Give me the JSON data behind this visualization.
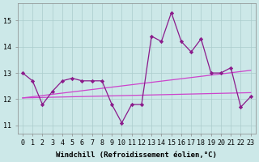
{
  "x": [
    0,
    1,
    2,
    3,
    4,
    5,
    6,
    7,
    8,
    9,
    10,
    11,
    12,
    13,
    14,
    15,
    16,
    17,
    18,
    19,
    20,
    21,
    22,
    23
  ],
  "line1": [
    13.0,
    12.7,
    11.8,
    12.3,
    12.7,
    12.8,
    12.7,
    12.7,
    12.7,
    11.8,
    11.1,
    11.8,
    11.8,
    14.4,
    14.2,
    15.3,
    14.2,
    13.8,
    14.3,
    13.0,
    13.0,
    13.2,
    11.7,
    12.1
  ],
  "line_color": "#8b1a8b",
  "reg_color": "#cc44cc",
  "bg_color": "#cce8e8",
  "grid_color": "#aacccc",
  "xlabel": "Windchill (Refroidissement éolien,°C)",
  "ylabel_ticks": [
    11,
    12,
    13,
    14,
    15
  ],
  "xlim": [
    -0.5,
    23.5
  ],
  "ylim": [
    10.7,
    15.65
  ],
  "tick_fontsize": 6,
  "label_fontsize": 6.5
}
